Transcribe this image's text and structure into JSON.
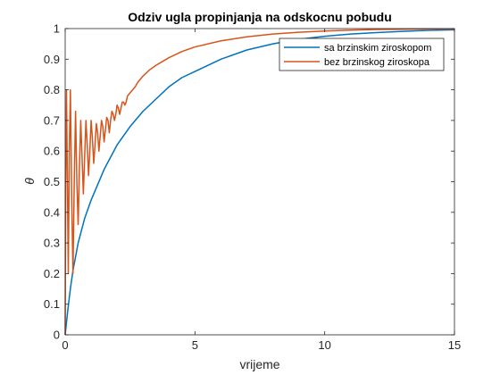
{
  "chart_data": {
    "type": "line",
    "title": "Odziv ugla propinjanja na odskocnu pobudu",
    "xlabel": "vrijeme",
    "ylabel": "θ",
    "xlim": [
      0,
      15
    ],
    "ylim": [
      0,
      1
    ],
    "xticks": [
      "0",
      "5",
      "10",
      "15"
    ],
    "yticks": [
      "0",
      "0.1",
      "0.2",
      "0.3",
      "0.4",
      "0.5",
      "0.6",
      "0.7",
      "0.8",
      "0.9",
      "1"
    ],
    "grid": false,
    "legend_position": "top-right",
    "series": [
      {
        "name": "sa brzinskim ziroskopom",
        "color": "#0072BD",
        "x": [
          0,
          0.1,
          0.2,
          0.3,
          0.5,
          0.75,
          1,
          1.5,
          2,
          2.5,
          3,
          3.5,
          4,
          4.5,
          5,
          6,
          7,
          8,
          9,
          10,
          11,
          12,
          13,
          14,
          15
        ],
        "y": [
          0,
          0.08,
          0.15,
          0.21,
          0.3,
          0.38,
          0.44,
          0.54,
          0.62,
          0.68,
          0.73,
          0.77,
          0.81,
          0.84,
          0.86,
          0.9,
          0.93,
          0.95,
          0.965,
          0.975,
          0.982,
          0.987,
          0.991,
          0.994,
          0.996
        ]
      },
      {
        "name": "bez brzinskog ziroskopa",
        "color": "#D95319",
        "x": [
          0,
          0.02,
          0.05,
          0.08,
          0.12,
          0.16,
          0.2,
          0.25,
          0.3,
          0.35,
          0.4,
          0.45,
          0.5,
          0.55,
          0.6,
          0.65,
          0.7,
          0.75,
          0.8,
          0.85,
          0.9,
          0.95,
          1.0,
          1.05,
          1.1,
          1.15,
          1.2,
          1.25,
          1.3,
          1.35,
          1.4,
          1.45,
          1.5,
          1.55,
          1.6,
          1.65,
          1.7,
          1.75,
          1.8,
          1.85,
          1.9,
          1.95,
          2.0,
          2.05,
          2.1,
          2.15,
          2.2,
          2.25,
          2.3,
          2.35,
          2.4,
          2.5,
          2.6,
          2.7,
          2.8,
          2.9,
          3.0,
          3.25,
          3.5,
          4,
          4.5,
          5,
          6,
          7,
          8,
          9,
          10,
          11,
          12,
          13,
          14,
          15
        ],
        "y": [
          0,
          0.5,
          0.8,
          0.55,
          0.2,
          0.6,
          0.8,
          0.45,
          0.2,
          0.5,
          0.73,
          0.5,
          0.36,
          0.55,
          0.7,
          0.58,
          0.46,
          0.58,
          0.7,
          0.62,
          0.52,
          0.6,
          0.7,
          0.64,
          0.56,
          0.62,
          0.69,
          0.66,
          0.6,
          0.65,
          0.7,
          0.68,
          0.63,
          0.67,
          0.71,
          0.7,
          0.66,
          0.7,
          0.73,
          0.72,
          0.7,
          0.72,
          0.75,
          0.74,
          0.72,
          0.74,
          0.76,
          0.76,
          0.75,
          0.76,
          0.78,
          0.79,
          0.8,
          0.81,
          0.825,
          0.835,
          0.845,
          0.865,
          0.88,
          0.905,
          0.925,
          0.94,
          0.96,
          0.973,
          0.982,
          0.988,
          0.992,
          0.995,
          0.997,
          0.998,
          0.999,
          0.999
        ]
      }
    ]
  }
}
